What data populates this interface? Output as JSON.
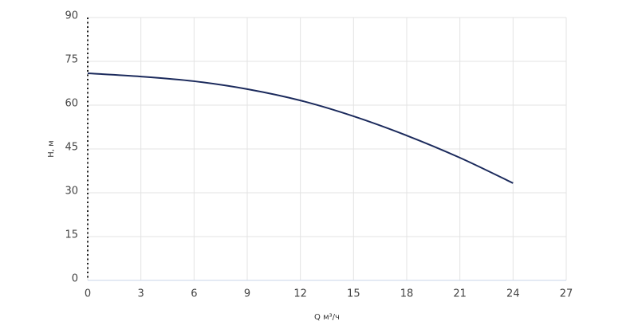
{
  "chart_data": {
    "type": "line",
    "x_label": "Q м³/ч",
    "y_label": "H, м",
    "x": [
      0,
      3,
      6,
      9,
      12,
      15,
      18,
      21,
      24
    ],
    "series": [
      {
        "color": "#1b2a5c",
        "values": [
          70.9,
          69.8,
          68.2,
          65.5,
          61.6,
          56.2,
          49.6,
          42,
          33.3
        ]
      }
    ],
    "xlim": [
      0,
      27
    ],
    "xticks": [
      0,
      3,
      6,
      9,
      12,
      15,
      18,
      21,
      24,
      27
    ],
    "ylim": [
      0,
      90
    ],
    "yticks": [
      0,
      15,
      30,
      45,
      60,
      75,
      90
    ],
    "grid": true
  }
}
